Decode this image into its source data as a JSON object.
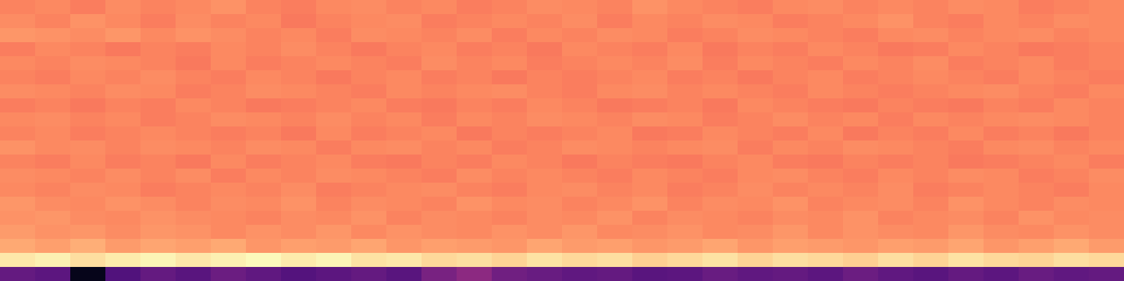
{
  "chart_data": {
    "type": "heatmap",
    "color": "magma",
    "tick_labels": false,
    "zlim": [
      0,
      1
    ],
    "z": [
      [
        0.74,
        0.75,
        0.73,
        0.76,
        0.74,
        0.75,
        0.77,
        0.74,
        0.73,
        0.75,
        0.76,
        0.74,
        0.75,
        0.73,
        0.74,
        0.76,
        0.75,
        0.74,
        0.77,
        0.75,
        0.74,
        0.73,
        0.75,
        0.76,
        0.74,
        0.75,
        0.74,
        0.76,
        0.75,
        0.73,
        0.74,
        0.75
      ],
      [
        0.76,
        0.74,
        0.77,
        0.75,
        0.73,
        0.76,
        0.74,
        0.75,
        0.72,
        0.74,
        0.75,
        0.76,
        0.73,
        0.74,
        0.75,
        0.74,
        0.76,
        0.73,
        0.75,
        0.74,
        0.76,
        0.75,
        0.73,
        0.74,
        0.75,
        0.77,
        0.74,
        0.73,
        0.75,
        0.74,
        0.76,
        0.75
      ],
      [
        0.78,
        0.77,
        0.76,
        0.78,
        0.75,
        0.77,
        0.76,
        0.74,
        0.75,
        0.73,
        0.76,
        0.75,
        0.74,
        0.76,
        0.73,
        0.75,
        0.74,
        0.76,
        0.75,
        0.73,
        0.74,
        0.76,
        0.75,
        0.74,
        0.73,
        0.75,
        0.76,
        0.74,
        0.75,
        0.76,
        0.74,
        0.75
      ],
      [
        0.73,
        0.75,
        0.74,
        0.72,
        0.74,
        0.73,
        0.75,
        0.74,
        0.76,
        0.74,
        0.72,
        0.74,
        0.75,
        0.73,
        0.74,
        0.72,
        0.75,
        0.74,
        0.73,
        0.75,
        0.72,
        0.74,
        0.73,
        0.75,
        0.74,
        0.72,
        0.73,
        0.75,
        0.74,
        0.72,
        0.73,
        0.74
      ],
      [
        0.75,
        0.74,
        0.76,
        0.75,
        0.74,
        0.72,
        0.75,
        0.73,
        0.74,
        0.75,
        0.74,
        0.73,
        0.76,
        0.74,
        0.75,
        0.73,
        0.74,
        0.75,
        0.74,
        0.76,
        0.73,
        0.75,
        0.74,
        0.73,
        0.75,
        0.74,
        0.76,
        0.73,
        0.74,
        0.75,
        0.73,
        0.74
      ],
      [
        0.74,
        0.73,
        0.75,
        0.74,
        0.76,
        0.74,
        0.73,
        0.75,
        0.74,
        0.72,
        0.74,
        0.75,
        0.73,
        0.74,
        0.72,
        0.74,
        0.73,
        0.74,
        0.75,
        0.73,
        0.74,
        0.72,
        0.74,
        0.75,
        0.73,
        0.74,
        0.75,
        0.74,
        0.73,
        0.75,
        0.74,
        0.73
      ],
      [
        0.76,
        0.75,
        0.74,
        0.76,
        0.75,
        0.73,
        0.74,
        0.76,
        0.75,
        0.74,
        0.73,
        0.75,
        0.74,
        0.75,
        0.76,
        0.74,
        0.73,
        0.75,
        0.76,
        0.74,
        0.75,
        0.74,
        0.73,
        0.75,
        0.74,
        0.73,
        0.74,
        0.75,
        0.76,
        0.74,
        0.73,
        0.75
      ],
      [
        0.73,
        0.74,
        0.72,
        0.74,
        0.73,
        0.75,
        0.74,
        0.72,
        0.73,
        0.74,
        0.75,
        0.73,
        0.72,
        0.74,
        0.73,
        0.75,
        0.74,
        0.72,
        0.73,
        0.74,
        0.72,
        0.75,
        0.74,
        0.73,
        0.72,
        0.74,
        0.73,
        0.72,
        0.74,
        0.73,
        0.75,
        0.74
      ],
      [
        0.75,
        0.76,
        0.74,
        0.75,
        0.73,
        0.74,
        0.76,
        0.75,
        0.74,
        0.76,
        0.74,
        0.75,
        0.73,
        0.75,
        0.74,
        0.76,
        0.75,
        0.74,
        0.76,
        0.75,
        0.73,
        0.74,
        0.76,
        0.74,
        0.75,
        0.73,
        0.75,
        0.74,
        0.75,
        0.76,
        0.75,
        0.74
      ],
      [
        0.74,
        0.75,
        0.73,
        0.74,
        0.75,
        0.74,
        0.73,
        0.74,
        0.72,
        0.75,
        0.73,
        0.74,
        0.75,
        0.72,
        0.74,
        0.73,
        0.74,
        0.75,
        0.72,
        0.73,
        0.75,
        0.74,
        0.73,
        0.75,
        0.72,
        0.74,
        0.73,
        0.75,
        0.73,
        0.74,
        0.72,
        0.74
      ],
      [
        0.77,
        0.75,
        0.76,
        0.74,
        0.76,
        0.75,
        0.74,
        0.76,
        0.75,
        0.73,
        0.75,
        0.76,
        0.74,
        0.75,
        0.73,
        0.74,
        0.76,
        0.75,
        0.74,
        0.75,
        0.76,
        0.73,
        0.75,
        0.74,
        0.76,
        0.75,
        0.74,
        0.73,
        0.75,
        0.76,
        0.74,
        0.75
      ],
      [
        0.74,
        0.73,
        0.75,
        0.73,
        0.74,
        0.72,
        0.75,
        0.73,
        0.74,
        0.75,
        0.73,
        0.72,
        0.74,
        0.73,
        0.75,
        0.74,
        0.72,
        0.74,
        0.73,
        0.72,
        0.74,
        0.75,
        0.73,
        0.72,
        0.74,
        0.73,
        0.74,
        0.72,
        0.73,
        0.74,
        0.75,
        0.73
      ],
      [
        0.76,
        0.75,
        0.74,
        0.76,
        0.74,
        0.76,
        0.73,
        0.75,
        0.74,
        0.76,
        0.75,
        0.74,
        0.73,
        0.76,
        0.74,
        0.75,
        0.74,
        0.73,
        0.75,
        0.74,
        0.73,
        0.75,
        0.76,
        0.74,
        0.73,
        0.75,
        0.74,
        0.76,
        0.75,
        0.73,
        0.74,
        0.76
      ],
      [
        0.75,
        0.74,
        0.76,
        0.75,
        0.73,
        0.74,
        0.75,
        0.74,
        0.76,
        0.73,
        0.74,
        0.75,
        0.76,
        0.74,
        0.73,
        0.75,
        0.76,
        0.74,
        0.75,
        0.73,
        0.74,
        0.76,
        0.74,
        0.75,
        0.74,
        0.76,
        0.73,
        0.74,
        0.75,
        0.74,
        0.73,
        0.75
      ],
      [
        0.78,
        0.76,
        0.75,
        0.77,
        0.76,
        0.74,
        0.76,
        0.75,
        0.77,
        0.74,
        0.76,
        0.75,
        0.74,
        0.77,
        0.75,
        0.76,
        0.74,
        0.75,
        0.77,
        0.74,
        0.76,
        0.75,
        0.77,
        0.74,
        0.75,
        0.76,
        0.74,
        0.77,
        0.75,
        0.74,
        0.76,
        0.75
      ],
      [
        0.77,
        0.78,
        0.76,
        0.75,
        0.77,
        0.76,
        0.75,
        0.74,
        0.76,
        0.75,
        0.77,
        0.74,
        0.76,
        0.75,
        0.74,
        0.76,
        0.75,
        0.77,
        0.74,
        0.76,
        0.75,
        0.74,
        0.76,
        0.75,
        0.77,
        0.74,
        0.75,
        0.76,
        0.74,
        0.77,
        0.75,
        0.76
      ],
      [
        0.79,
        0.77,
        0.78,
        0.76,
        0.78,
        0.77,
        0.75,
        0.77,
        0.76,
        0.78,
        0.75,
        0.77,
        0.76,
        0.75,
        0.77,
        0.76,
        0.78,
        0.75,
        0.76,
        0.77,
        0.75,
        0.76,
        0.78,
        0.75,
        0.77,
        0.76,
        0.75,
        0.78,
        0.76,
        0.75,
        0.77,
        0.76
      ],
      [
        0.82,
        0.8,
        0.83,
        0.79,
        0.81,
        0.8,
        0.82,
        0.78,
        0.8,
        0.79,
        0.81,
        0.78,
        0.8,
        0.79,
        0.78,
        0.81,
        0.79,
        0.8,
        0.78,
        0.79,
        0.81,
        0.78,
        0.8,
        0.79,
        0.78,
        0.8,
        0.79,
        0.81,
        0.78,
        0.8,
        0.82,
        0.79
      ],
      [
        0.95,
        0.97,
        0.93,
        0.96,
        0.98,
        0.95,
        0.97,
        0.99,
        0.96,
        0.98,
        0.94,
        0.95,
        0.92,
        0.93,
        0.91,
        0.94,
        0.92,
        0.93,
        0.9,
        0.92,
        0.94,
        0.91,
        0.93,
        0.92,
        0.9,
        0.93,
        0.91,
        0.94,
        0.92,
        0.91,
        0.93,
        0.92
      ],
      [
        0.3,
        0.28,
        0.05,
        0.25,
        0.3,
        0.27,
        0.32,
        0.29,
        0.26,
        0.28,
        0.3,
        0.27,
        0.35,
        0.4,
        0.33,
        0.31,
        0.29,
        0.3,
        0.27,
        0.28,
        0.31,
        0.29,
        0.3,
        0.28,
        0.32,
        0.29,
        0.27,
        0.3,
        0.28,
        0.31,
        0.29,
        0.3
      ]
    ]
  }
}
